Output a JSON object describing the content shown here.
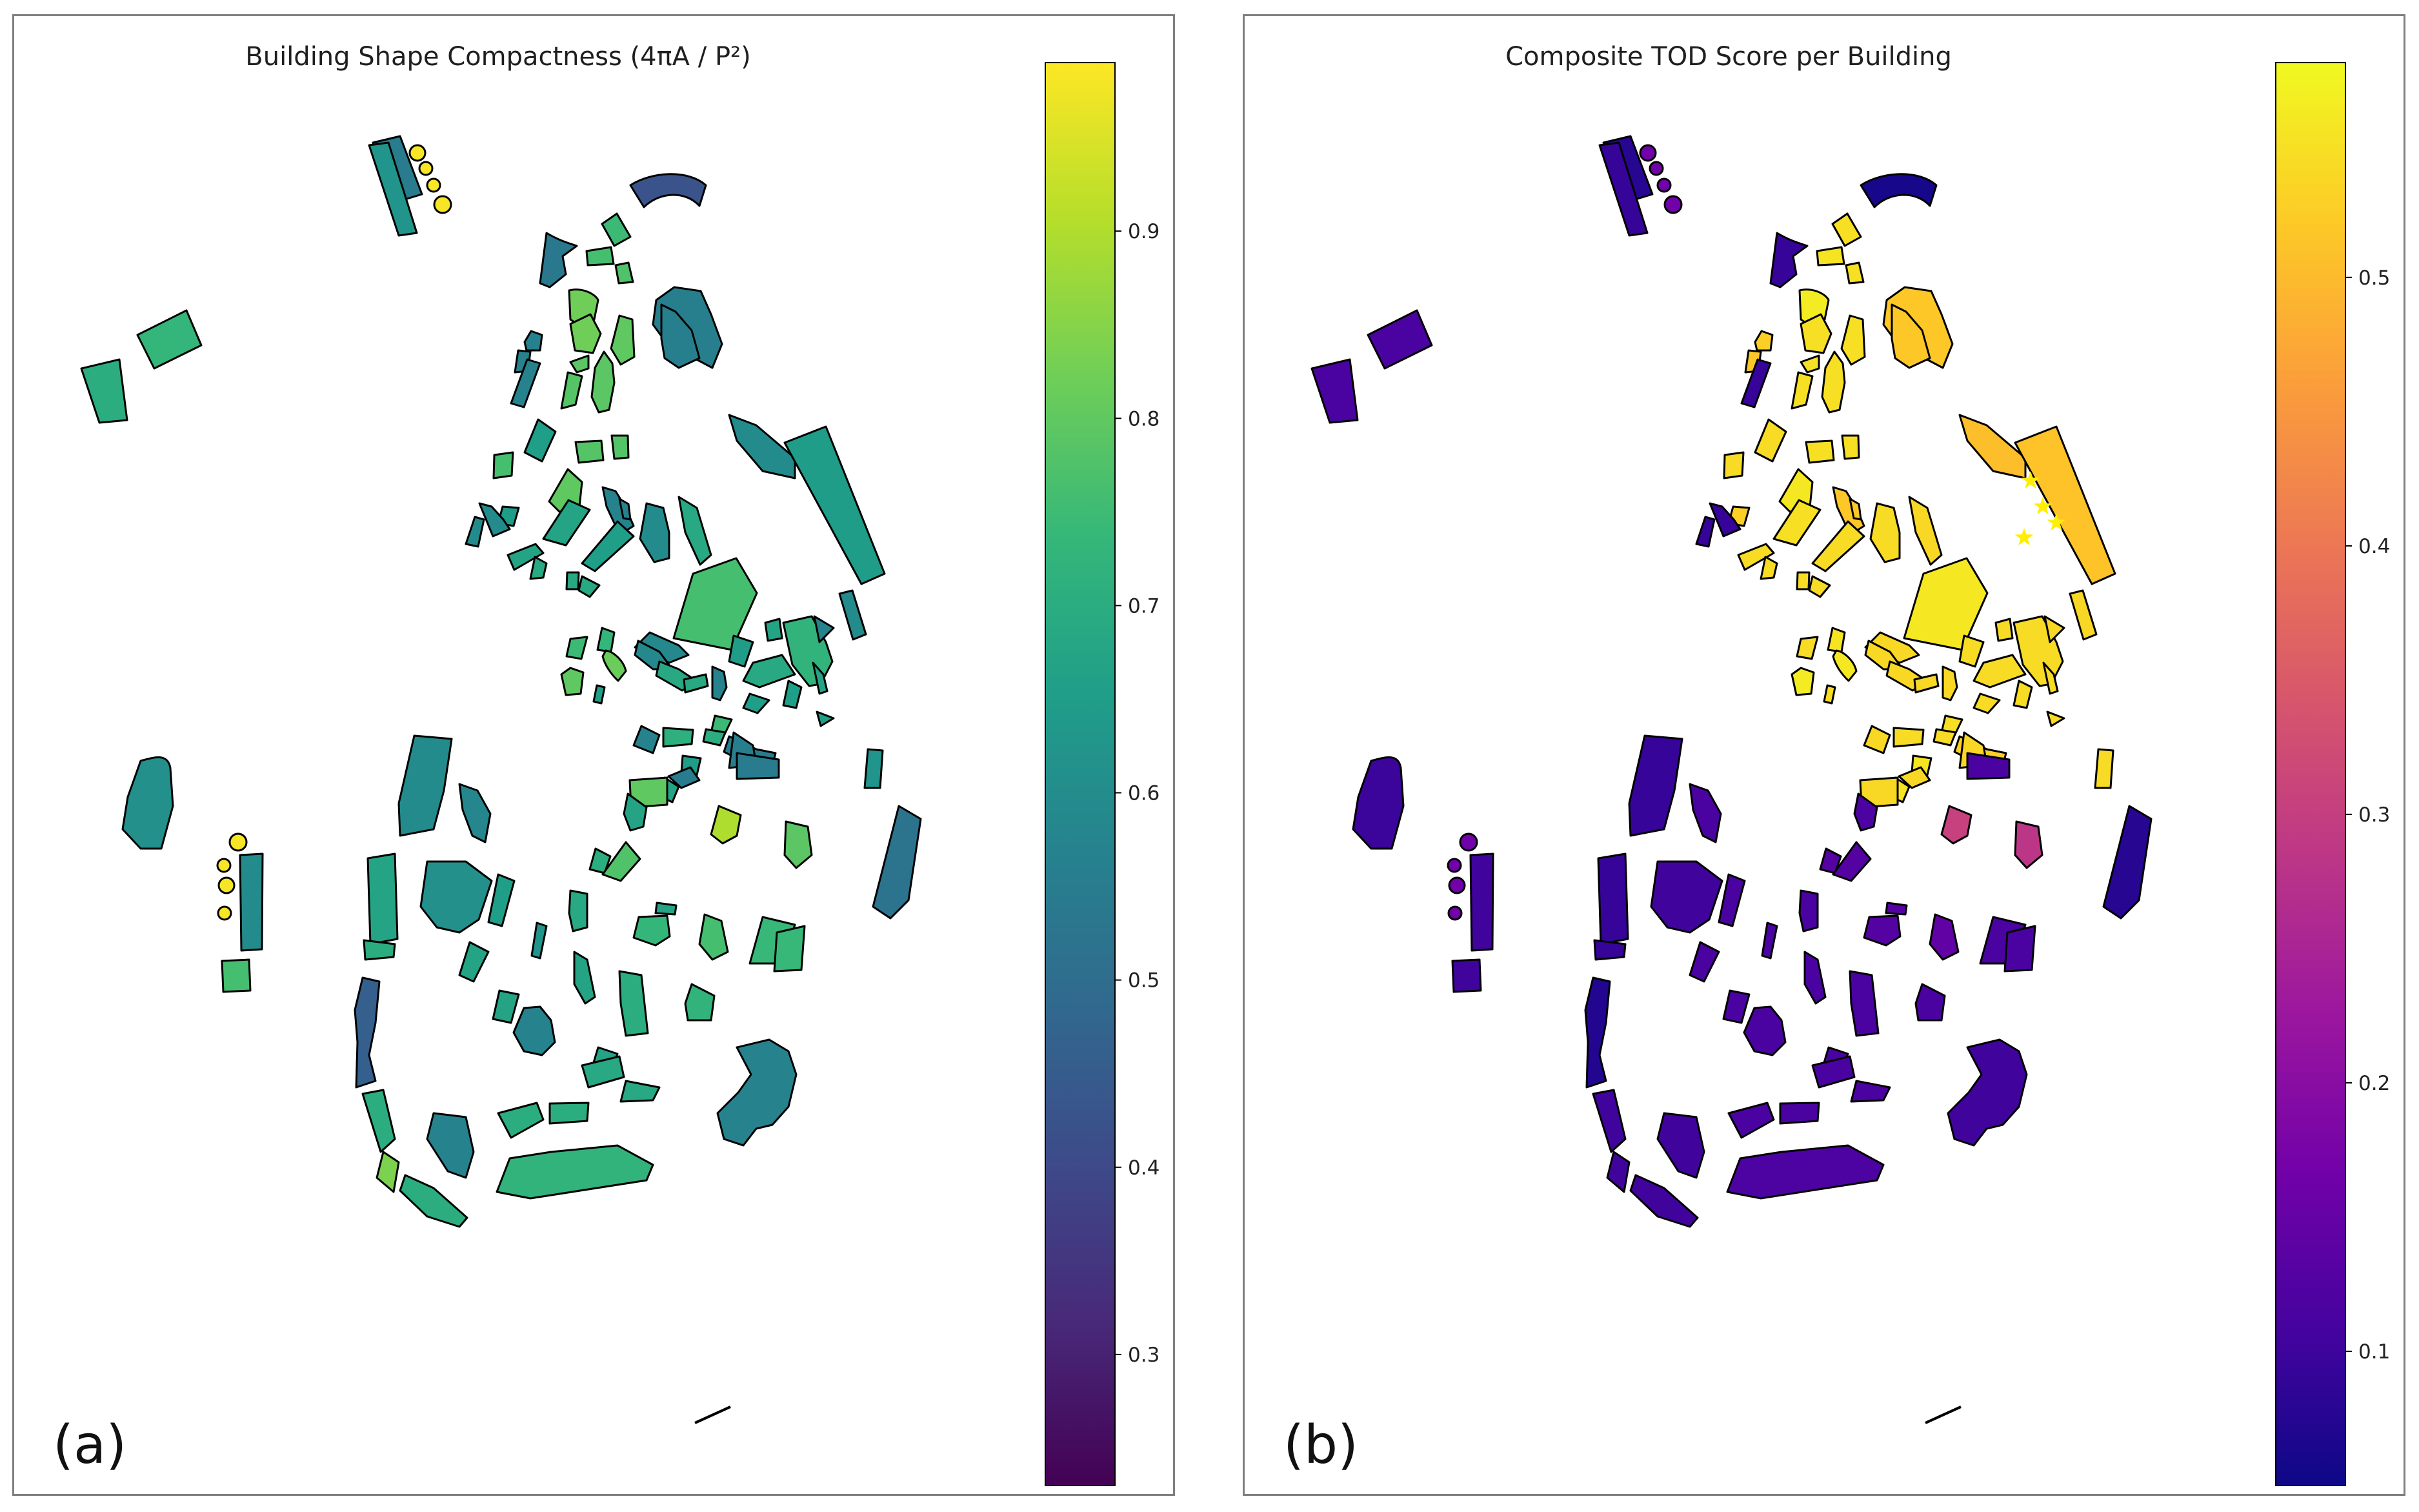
{
  "panels": [
    {
      "id": "a",
      "label": "(a)",
      "title": "Building Shape Compactness (4πA / P²)",
      "colormap": "viridis",
      "colorbar": {
        "min": 0.23,
        "max": 0.99,
        "ticks": [
          "0.3",
          "0.4",
          "0.5",
          "0.6",
          "0.7",
          "0.8",
          "0.9"
        ]
      }
    },
    {
      "id": "b",
      "label": "(b)",
      "title": "Composite TOD Score per Building",
      "colormap": "plasma",
      "colorbar": {
        "min": 0.05,
        "max": 0.58,
        "ticks": [
          "0.1",
          "0.2",
          "0.3",
          "0.4",
          "0.5"
        ]
      },
      "marker_icon": "star-icon",
      "marker_color": "#ffee00"
    }
  ],
  "colormaps": {
    "viridis": [
      "#440154",
      "#482878",
      "#3e4989",
      "#31688e",
      "#26828e",
      "#1f9e89",
      "#35b779",
      "#6ece58",
      "#b5de2b",
      "#fde725"
    ],
    "plasma": [
      "#0d0887",
      "#46039f",
      "#7201a8",
      "#9c179e",
      "#bd3786",
      "#d8576b",
      "#ed7953",
      "#fb9f3a",
      "#fdca26",
      "#f0f921"
    ]
  },
  "edge_color": "#000000"
}
